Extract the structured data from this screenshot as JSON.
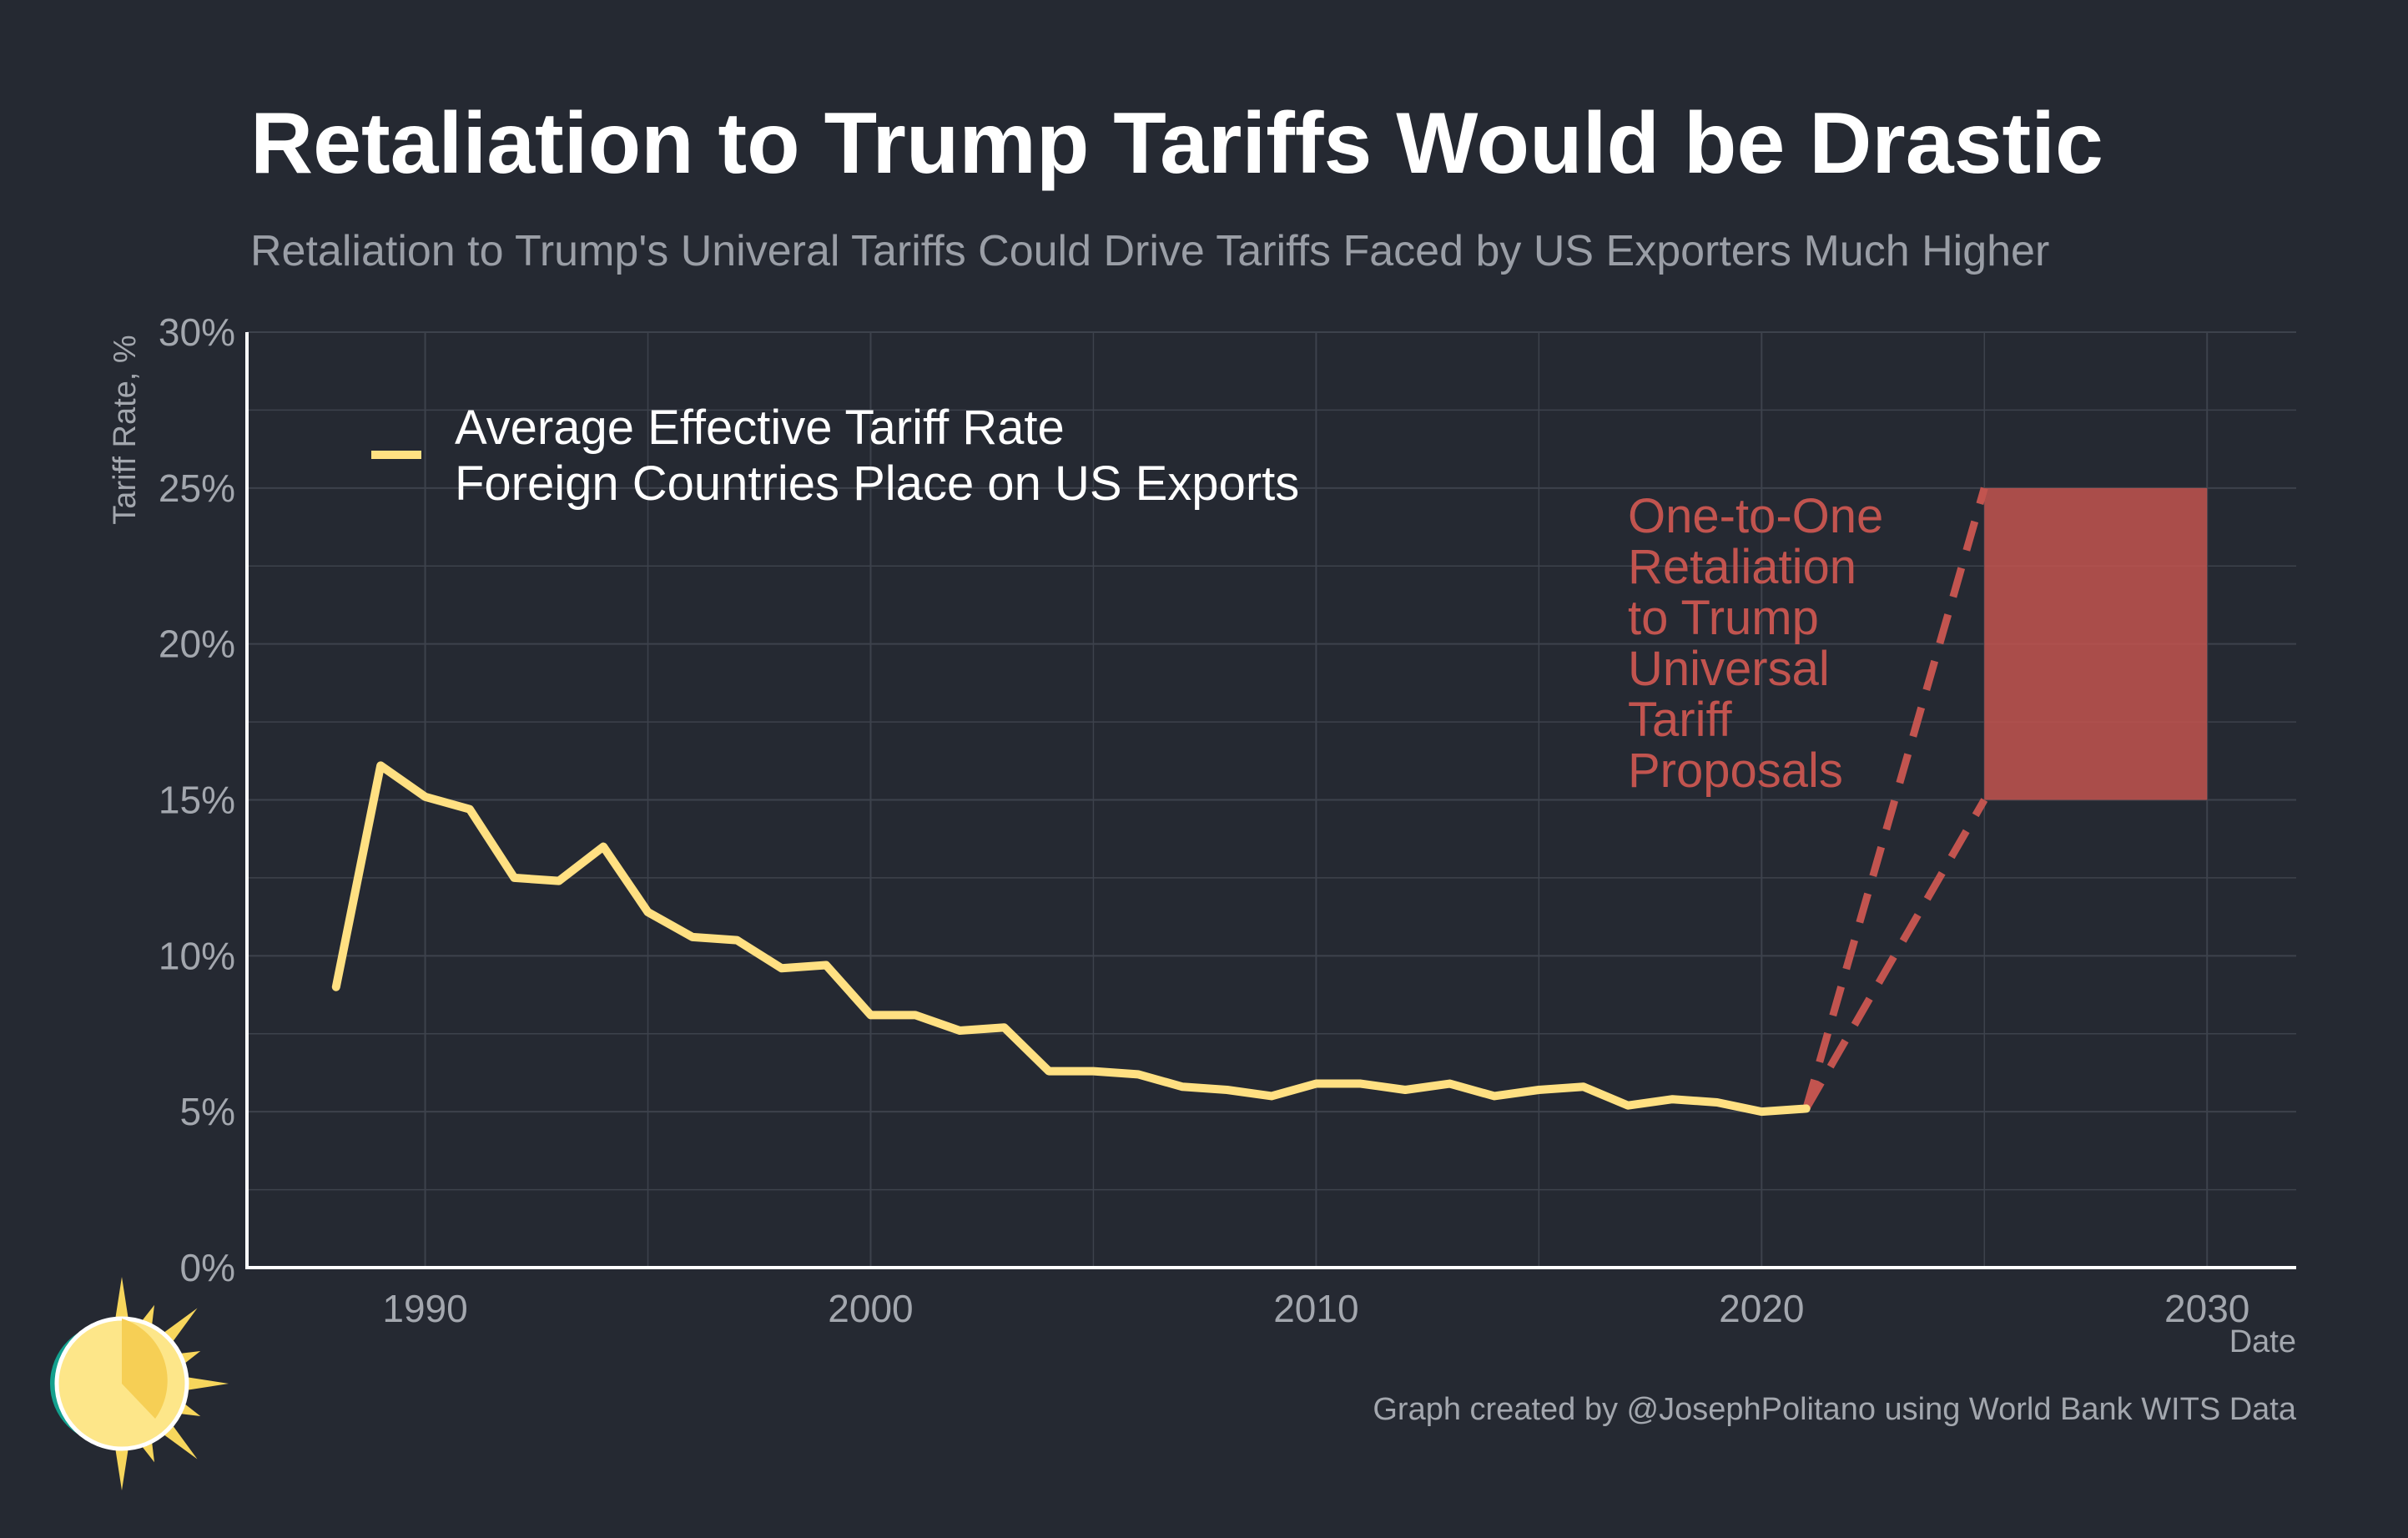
{
  "title": "Retaliation to Trump Tariffs Would be Drastic",
  "subtitle": "Retaliation to Trump's Univeral Tariffs Could Drive Tariffs Faced by US Exporters Much Higher",
  "caption": "Graph created by @JosephPolitano using World Bank WITS Data",
  "logo_icon": "sun-logo-icon",
  "colors": {
    "background": "#252932",
    "line": "#ffe082",
    "retaliation": "#c2544f",
    "grid": "#3d424c",
    "axis": "#ffffff"
  },
  "chart_data": {
    "type": "line",
    "xlabel": "Date",
    "ylabel": "Tariff Rate, %",
    "xlim": [
      1986,
      2032
    ],
    "ylim": [
      0,
      30
    ],
    "grid": true,
    "legend_position": "top-left",
    "x_ticks": [
      {
        "value": 1990,
        "label": "1990"
      },
      {
        "value": 2000,
        "label": "2000"
      },
      {
        "value": 2010,
        "label": "2010"
      },
      {
        "value": 2020,
        "label": "2020"
      },
      {
        "value": 2030,
        "label": "2030"
      }
    ],
    "y_ticks": [
      {
        "value": 0,
        "label": "0%"
      },
      {
        "value": 5,
        "label": "5%"
      },
      {
        "value": 10,
        "label": "10%"
      },
      {
        "value": 15,
        "label": "15%"
      },
      {
        "value": 20,
        "label": "20%"
      },
      {
        "value": 25,
        "label": "25%"
      },
      {
        "value": 30,
        "label": "30%"
      }
    ],
    "series": [
      {
        "name_lines": [
          "Average Effective Tariff Rate",
          "Foreign Countries Place on US Exports"
        ],
        "color": "#ffe082",
        "x": [
          1988,
          1989,
          1990,
          1991,
          1992,
          1993,
          1994,
          1995,
          1996,
          1997,
          1998,
          1999,
          2000,
          2001,
          2002,
          2003,
          2004,
          2005,
          2006,
          2007,
          2008,
          2009,
          2010,
          2011,
          2012,
          2013,
          2014,
          2015,
          2016,
          2017,
          2018,
          2019,
          2020,
          2021
        ],
        "y": [
          9.0,
          16.1,
          15.1,
          14.7,
          12.5,
          12.4,
          13.5,
          11.4,
          10.6,
          10.5,
          9.6,
          9.7,
          8.1,
          8.1,
          7.6,
          7.7,
          6.3,
          6.3,
          6.2,
          5.8,
          5.7,
          5.5,
          5.9,
          5.9,
          5.7,
          5.9,
          5.5,
          5.7,
          5.8,
          5.2,
          5.4,
          5.3,
          5.0,
          5.1
        ]
      }
    ],
    "retaliation": {
      "label_lines": [
        "One-to-One",
        "Retaliation",
        "to Trump",
        "Universal",
        "Tariff",
        "Proposals"
      ],
      "color": "#c2544f",
      "start": {
        "x": 2021,
        "y": 5.1
      },
      "range": {
        "x_start": 2025,
        "x_end": 2030,
        "y_low": 15,
        "y_high": 25
      }
    }
  }
}
